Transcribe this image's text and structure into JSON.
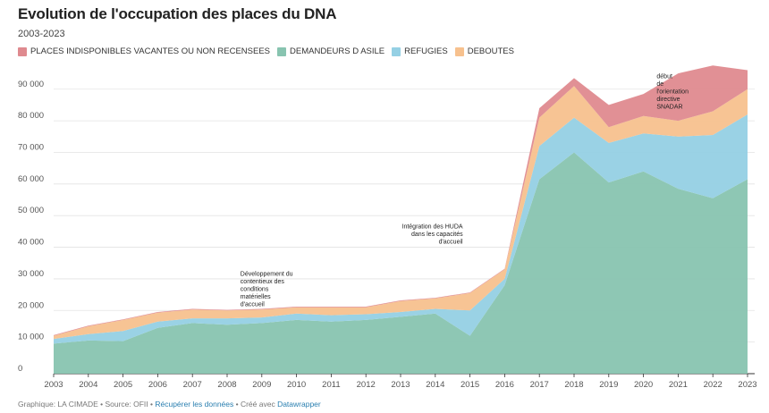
{
  "chart_data": {
    "type": "area",
    "title": "Evolution de l'occupation des places du DNA",
    "subtitle": "2003-2023",
    "x": [
      "2003",
      "2004",
      "2005",
      "2006",
      "2007",
      "2008",
      "2009",
      "2010",
      "2011",
      "2012",
      "2013",
      "2014",
      "2015",
      "2016",
      "2017",
      "2018",
      "2019",
      "2020",
      "2021",
      "2022",
      "2023"
    ],
    "ylim": [
      0,
      97000
    ],
    "yticks": [
      0,
      10000,
      20000,
      30000,
      40000,
      50000,
      60000,
      70000,
      80000,
      90000
    ],
    "ytick_labels": [
      "0",
      "10 000",
      "20 000",
      "30 000",
      "40 000",
      "50 000",
      "60 000",
      "70 000",
      "80 000",
      "90 000"
    ],
    "series": [
      {
        "name": "DEMANDEURS D ASILE",
        "color": "#88c4b0",
        "values": [
          9500,
          10500,
          10300,
          14500,
          16000,
          15500,
          16000,
          17000,
          16500,
          17000,
          18000,
          19000,
          12000,
          28000,
          61500,
          70000,
          60500,
          64000,
          58500,
          55500,
          61500
        ]
      },
      {
        "name": "REFUGIES",
        "color": "#95d0e4",
        "values": [
          1500,
          2000,
          3200,
          2000,
          1500,
          2000,
          1800,
          2000,
          2000,
          1800,
          1500,
          1500,
          8000,
          2000,
          10500,
          11000,
          12500,
          12000,
          16500,
          20000,
          20500
        ]
      },
      {
        "name": "DEBOUTES",
        "color": "#f7c18e",
        "values": [
          1000,
          2500,
          3500,
          2800,
          2800,
          2500,
          2500,
          2000,
          2500,
          2200,
          3500,
          3300,
          5500,
          3000,
          9000,
          10000,
          5000,
          5500,
          5000,
          7500,
          8000
        ]
      },
      {
        "name": "PLACES INDISPONIBLES VACANTES OU NON RECENSEES",
        "color": "#df8a8f",
        "values": [
          200,
          200,
          200,
          200,
          200,
          200,
          200,
          200,
          200,
          200,
          200,
          200,
          200,
          200,
          3000,
          2500,
          7000,
          7000,
          15000,
          14500,
          6000
        ]
      }
    ],
    "legend_order": [
      "PLACES INDISPONIBLES VACANTES OU NON RECENSEES",
      "DEMANDEURS D ASILE",
      "REFUGIES",
      "DEBOUTES"
    ],
    "legend_colors": [
      "#df8a8f",
      "#88c4b0",
      "#95d0e4",
      "#f7c18e"
    ],
    "annotations": [
      {
        "year": "2009",
        "y": 31000,
        "lines": [
          "Développement du",
          "contentieux des",
          "conditions",
          "matérielles",
          "d'accueil"
        ],
        "align": "start"
      },
      {
        "year": "2015",
        "y": 46000,
        "lines": [
          "Intégration des HUDA",
          "dans les capacités",
          "d'accueil"
        ],
        "align": "end"
      },
      {
        "year": "2021",
        "y": 93500,
        "lines": [
          "début",
          "de",
          "l'orientation",
          "directive",
          "SNADAR"
        ],
        "align": "start"
      }
    ]
  },
  "footer": {
    "prefix": "Graphique: LA CIMADE • Source: OFII • ",
    "link1": "Récupérer les données",
    "middle": " • Créé avec ",
    "link2": "Datawrapper"
  }
}
